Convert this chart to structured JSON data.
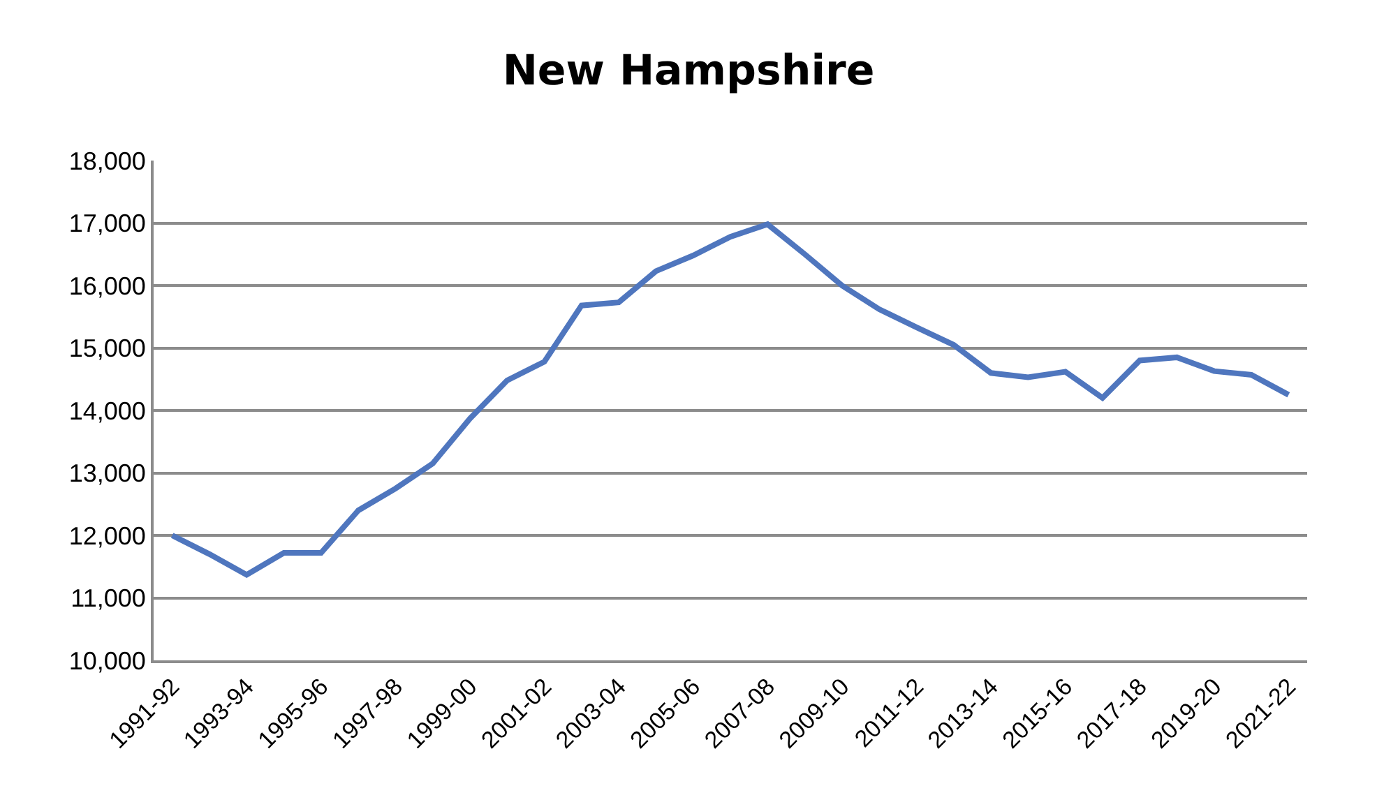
{
  "chart_data": {
    "type": "line",
    "title": "New Hampshire",
    "categories": [
      "1991-92",
      null,
      "1993-94",
      null,
      "1995-96",
      null,
      "1997-98",
      null,
      "1999-00",
      null,
      "2001-02",
      null,
      "2003-04",
      null,
      "2005-06",
      null,
      "2007-08",
      null,
      "2009-10",
      null,
      "2011-12",
      null,
      "2013-14",
      null,
      "2015-16",
      null,
      "2017-18",
      null,
      "2019-20",
      null,
      "2021-22"
    ],
    "series": [
      {
        "color": "#4f76be",
        "values": [
          12000,
          11700,
          11370,
          11720,
          11720,
          12400,
          12750,
          13150,
          13870,
          14480,
          14780,
          15680,
          15730,
          16230,
          16480,
          16780,
          16980,
          16500,
          16000,
          15620,
          15330,
          15050,
          14600,
          14530,
          14620,
          14200,
          14800,
          14850,
          14630,
          14570,
          14250
        ]
      }
    ],
    "ylim": [
      10000,
      18000
    ],
    "yticks": [
      {
        "value": 10000,
        "label": "10,000"
      },
      {
        "value": 11000,
        "label": "11,000"
      },
      {
        "value": 12000,
        "label": "12,000"
      },
      {
        "value": 13000,
        "label": "13,000"
      },
      {
        "value": 14000,
        "label": "14,000"
      },
      {
        "value": 15000,
        "label": "15,000"
      },
      {
        "value": 16000,
        "label": "16,000"
      },
      {
        "value": 17000,
        "label": "17,000"
      },
      {
        "value": 18000,
        "label": "18,000"
      }
    ],
    "grid": "y",
    "marker": "none",
    "line_style": "solid"
  }
}
